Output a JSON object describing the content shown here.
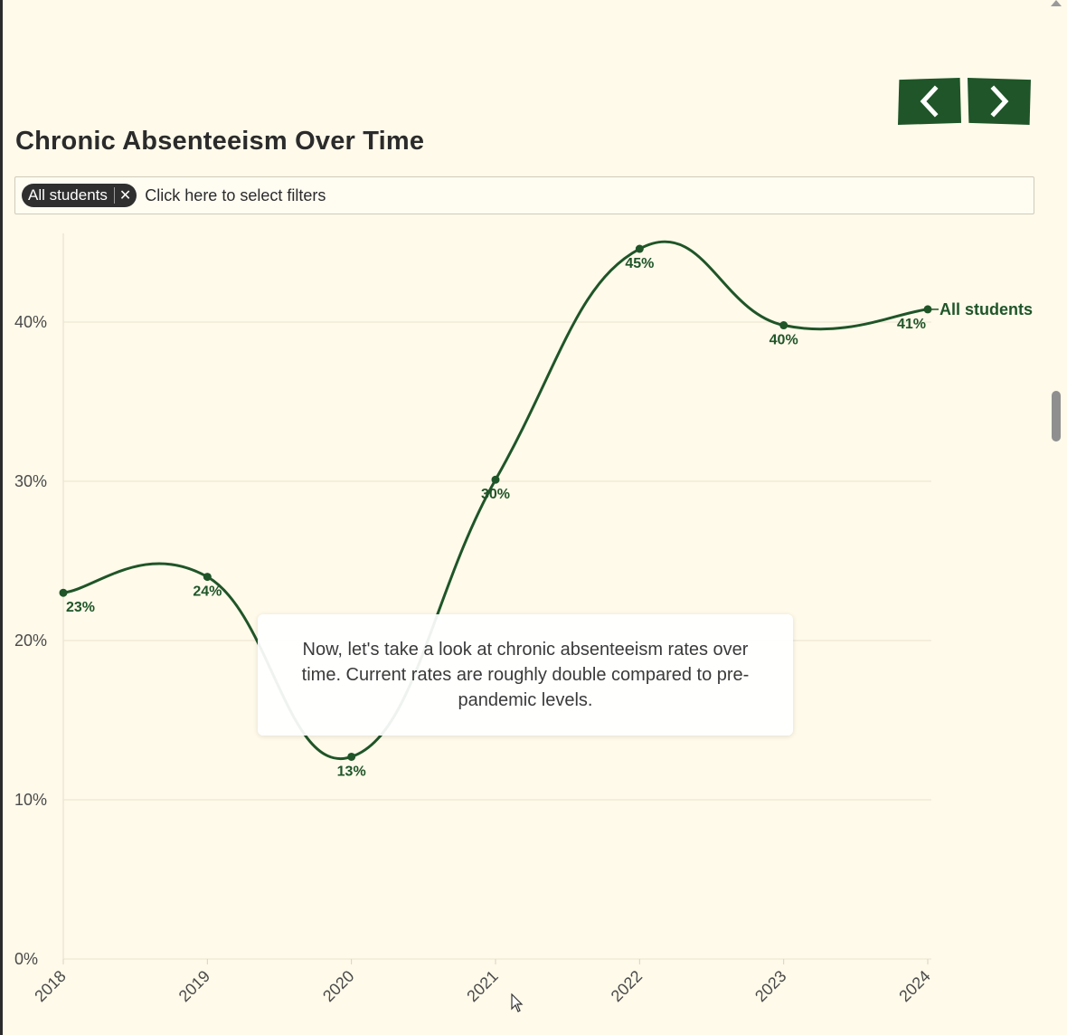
{
  "nav": {
    "prev_icon": "chevron-left-icon",
    "next_icon": "chevron-right-icon"
  },
  "title": "Chronic Absenteeism Over Time",
  "filters": {
    "chips": [
      {
        "label": "All students",
        "remove_icon": "close-icon"
      }
    ],
    "placeholder": "Click here to select filters"
  },
  "tooltip": {
    "text": "Now, let's take a look at chronic absenteeism rates over time. Current rates are roughly double compared to pre-pandemic levels."
  },
  "colors": {
    "accent": "#1f5528",
    "background": "#fffaea",
    "chip": "#2f2f2f"
  },
  "chart_data": {
    "type": "line",
    "title": "Chronic Absenteeism Over Time",
    "xlabel": "",
    "ylabel": "",
    "categories": [
      "2018",
      "2019",
      "2020",
      "2021",
      "2022",
      "2023",
      "2024"
    ],
    "series": [
      {
        "name": "All students",
        "values": [
          23,
          24,
          12.7,
          30.1,
          44.6,
          39.8,
          40.8
        ],
        "labels": [
          "23%",
          "24%",
          "13%",
          "30%",
          "45%",
          "40%",
          "41%"
        ],
        "color": "#1f5528"
      }
    ],
    "ylim": [
      0,
      45
    ],
    "yticks": [
      0,
      10,
      20,
      30,
      40
    ],
    "ytick_labels": [
      "0%",
      "10%",
      "20%",
      "30%",
      "40%"
    ],
    "grid": true,
    "legend": "end-of-line label"
  }
}
